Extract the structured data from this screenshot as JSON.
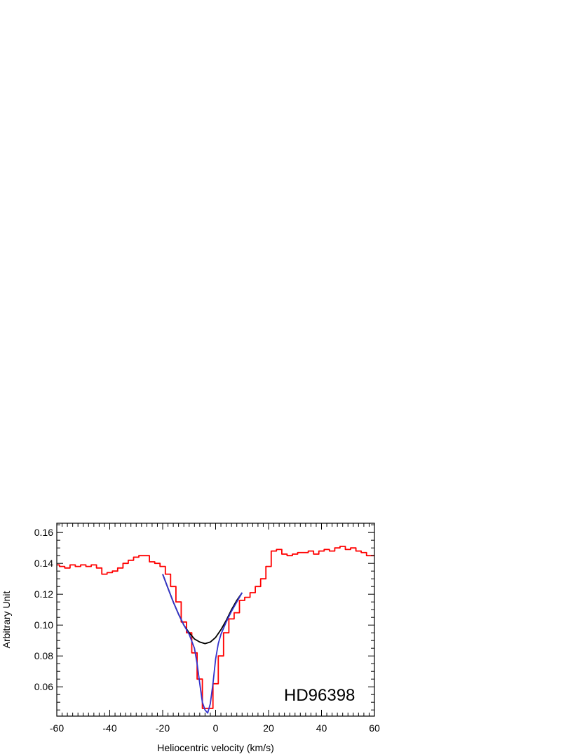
{
  "chart_data": {
    "type": "line",
    "title": "",
    "xlabel": "Heliocentric velocity (km/s)",
    "ylabel": "Arbitrary Unit",
    "annotation": "HD96398",
    "xlim": [
      -60,
      60
    ],
    "ylim": [
      0.041,
      0.166
    ],
    "x_ticks": [
      -60,
      -40,
      -20,
      0,
      20,
      40,
      60
    ],
    "y_ticks": [
      0.06,
      0.08,
      0.1,
      0.12,
      0.14,
      0.16
    ],
    "x_tick_labels": [
      "-60",
      "-40",
      "-20",
      "0",
      "20",
      "40",
      "60"
    ],
    "y_tick_labels": [
      "0.06",
      "0.08",
      "0.10",
      "0.12",
      "0.14",
      "0.16"
    ],
    "grid": false,
    "colors": {
      "spectrum": "#ff0000",
      "fit_total": "#3333cc",
      "fit_broad": "#000000"
    },
    "series": [
      {
        "style": "step",
        "color": "#ff0000",
        "x": [
          -60,
          -58,
          -56,
          -54,
          -52,
          -50,
          -48,
          -46,
          -44,
          -42,
          -40,
          -38,
          -36,
          -34,
          -32,
          -30,
          -28,
          -26,
          -24,
          -22,
          -20,
          -18,
          -16,
          -14,
          -12,
          -10,
          -8,
          -6,
          -4,
          -2,
          0,
          2,
          4,
          6,
          8,
          10,
          12,
          14,
          16,
          18,
          20,
          22,
          24,
          26,
          28,
          30,
          32,
          34,
          36,
          38,
          40,
          42,
          44,
          46,
          48,
          50,
          52,
          54,
          56,
          58,
          60
        ],
        "y": [
          0.139,
          0.138,
          0.137,
          0.139,
          0.138,
          0.139,
          0.138,
          0.139,
          0.137,
          0.133,
          0.134,
          0.135,
          0.137,
          0.14,
          0.142,
          0.144,
          0.145,
          0.145,
          0.141,
          0.14,
          0.138,
          0.133,
          0.125,
          0.115,
          0.102,
          0.095,
          0.082,
          0.065,
          0.046,
          0.046,
          0.062,
          0.08,
          0.095,
          0.104,
          0.108,
          0.116,
          0.118,
          0.121,
          0.125,
          0.13,
          0.138,
          0.148,
          0.149,
          0.146,
          0.145,
          0.146,
          0.147,
          0.147,
          0.148,
          0.146,
          0.148,
          0.149,
          0.148,
          0.15,
          0.151,
          0.149,
          0.15,
          0.148,
          0.147,
          0.145,
          0.145
        ]
      },
      {
        "style": "line",
        "color": "#000000",
        "x": [
          -20,
          -18,
          -16,
          -14,
          -12,
          -10,
          -8,
          -6,
          -4,
          -2,
          0,
          2,
          4,
          6,
          8,
          10
        ],
        "y": [
          0.133,
          0.124,
          0.115,
          0.107,
          0.1,
          0.095,
          0.091,
          0.089,
          0.088,
          0.089,
          0.092,
          0.097,
          0.103,
          0.11,
          0.116,
          0.121
        ]
      },
      {
        "style": "line",
        "color": "#3333cc",
        "x": [
          -20,
          -18,
          -16,
          -14,
          -12,
          -10,
          -8,
          -7,
          -6,
          -5,
          -4,
          -3,
          -2,
          -1,
          0,
          1,
          2,
          4,
          6,
          8,
          10
        ],
        "y": [
          0.133,
          0.124,
          0.115,
          0.107,
          0.1,
          0.094,
          0.085,
          0.075,
          0.062,
          0.05,
          0.045,
          0.043,
          0.049,
          0.062,
          0.078,
          0.088,
          0.094,
          0.102,
          0.109,
          0.115,
          0.121
        ]
      }
    ]
  }
}
